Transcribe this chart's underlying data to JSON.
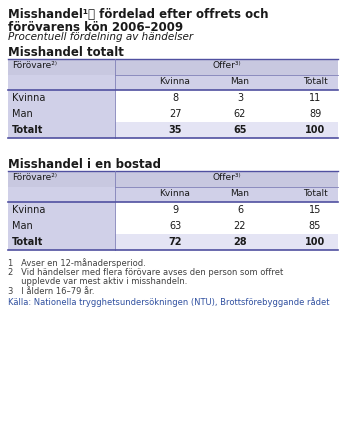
{
  "title_line1": "Misshandel¹⧥ fördelad efter offrets och",
  "title_line2": "förövarens kön 2006–2009",
  "title_italic": "Procentuell fördelning av händelser",
  "section1_title": "Misshandel totalt",
  "section2_title": "Misshandel i en bostad",
  "header_forovare": "Förövare²⁾",
  "header_offer": "Offer³⁾",
  "col_headers": [
    "Kvinna",
    "Man",
    "Totalt"
  ],
  "row_headers1": [
    "Kvinna",
    "Man",
    "Totalt"
  ],
  "row_headers2": [
    "Kvinna",
    "Man",
    "Totalt"
  ],
  "table1_data": [
    [
      "8",
      "3",
      "11"
    ],
    [
      "27",
      "62",
      "89"
    ],
    [
      "35",
      "65",
      "100"
    ]
  ],
  "table2_data": [
    [
      "9",
      "6",
      "15"
    ],
    [
      "63",
      "22",
      "85"
    ],
    [
      "72",
      "28",
      "100"
    ]
  ],
  "footnote1": "1   Avser en 12-månadersperiod.",
  "footnote2a": "2   Vid händelser med flera förövare avses den person som offret",
  "footnote2b": "     upplevde var mest aktiv i misshandeln.",
  "footnote3": "3   I åldern 16–79 år.",
  "source": "Källa: Nationella trygghetsundersökningen (NTU), Brottsförebyggande rådet",
  "header_bg": "#c8c8e0",
  "subheader_bg": "#d0d0e8",
  "left_col_bg": "#d0d0e8",
  "total_bg": "#e4e4f4",
  "border_color_dark": "#5050a0",
  "border_color_mid": "#8080b8",
  "text_dark": "#1a1a1a",
  "text_blue": "#3050a0",
  "source_color": "#3050a0"
}
